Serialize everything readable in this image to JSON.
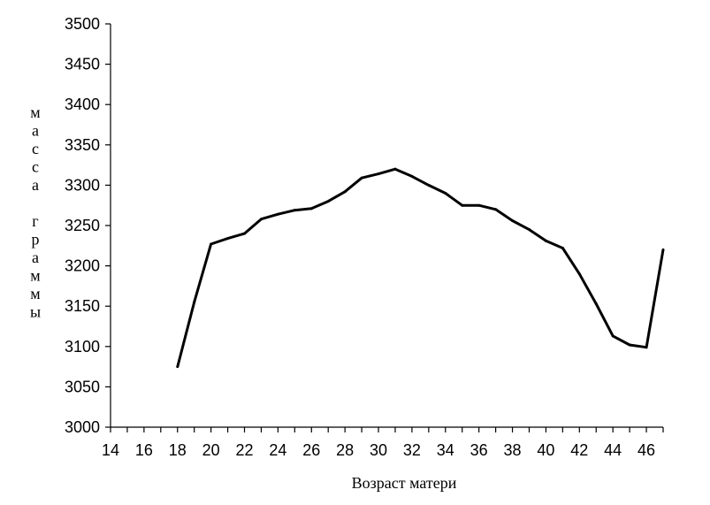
{
  "chart_data": {
    "type": "line",
    "title": "",
    "xlabel": "Возраст матери",
    "ylabel": "масса граммы",
    "xlim": [
      14,
      47
    ],
    "ylim": [
      3000,
      3500
    ],
    "x_ticks": [
      14,
      16,
      18,
      20,
      22,
      24,
      26,
      28,
      30,
      32,
      34,
      36,
      38,
      40,
      42,
      44,
      46
    ],
    "y_ticks": [
      3000,
      3050,
      3100,
      3150,
      3200,
      3250,
      3300,
      3350,
      3400,
      3450,
      3500
    ],
    "grid": false,
    "legend": "none",
    "series": [
      {
        "color": "#000000",
        "x": [
          18,
          19,
          20,
          21,
          22,
          23,
          24,
          25,
          26,
          27,
          28,
          29,
          30,
          31,
          32,
          33,
          34,
          35,
          36,
          37,
          38,
          39,
          40,
          41,
          42,
          43,
          44,
          45,
          46,
          47
        ],
        "y": [
          3075,
          3155,
          3227,
          3234,
          3240,
          3258,
          3264,
          3269,
          3271,
          3280,
          3292,
          3309,
          3314,
          3320,
          3311,
          3300,
          3290,
          3275,
          3275,
          3270,
          3256,
          3245,
          3231,
          3222,
          3190,
          3153,
          3113,
          3102,
          3099,
          3220
        ]
      }
    ]
  }
}
